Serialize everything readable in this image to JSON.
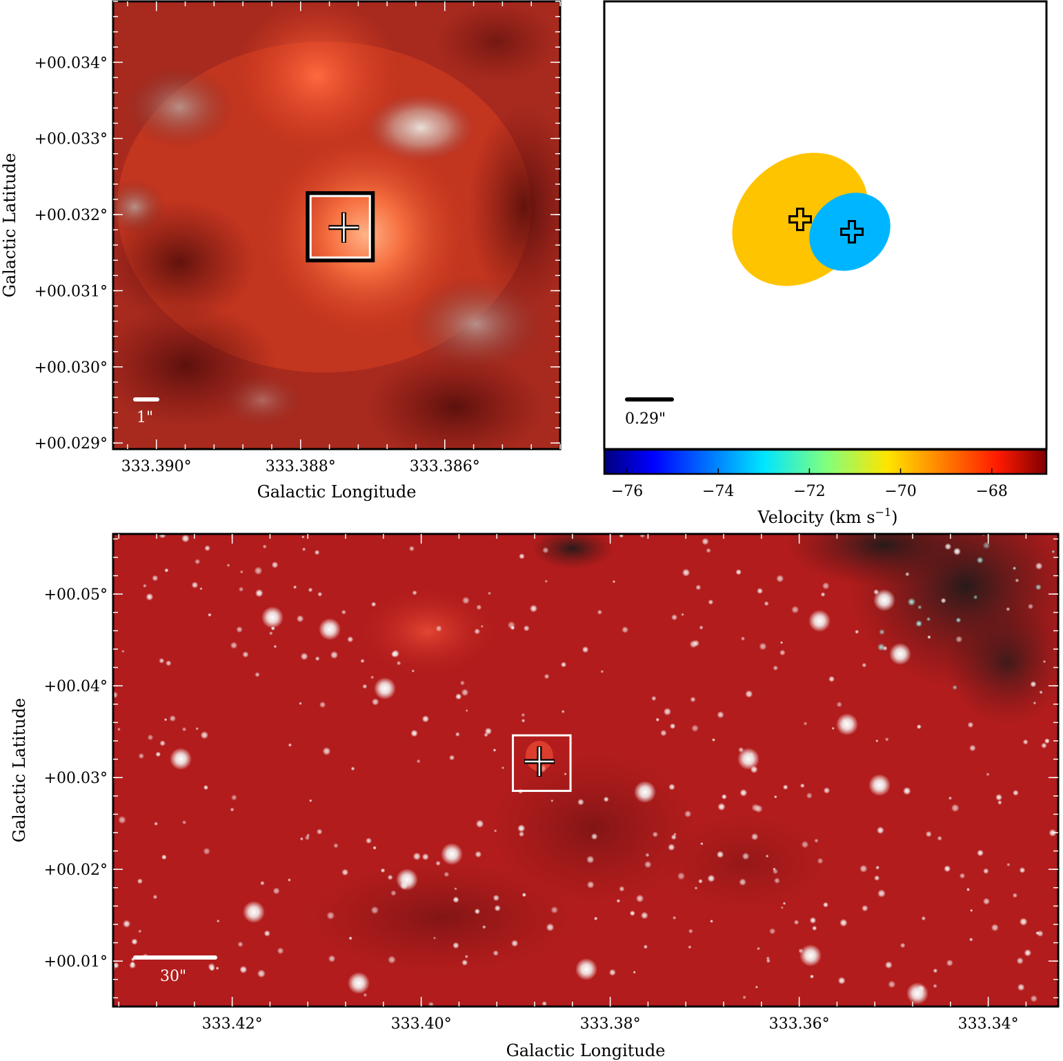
{
  "chart_data": [
    {
      "type": "image",
      "panel": "top-left",
      "xlabel": "Galactic Longitude",
      "ylabel": "Galactic Latitude",
      "xlim": [
        333.3906,
        333.3844
      ],
      "ylim": [
        0.02892,
        0.0348
      ],
      "x_ticks": [
        {
          "value": 333.39,
          "label": "333.390°"
        },
        {
          "value": 333.388,
          "label": "333.388°"
        },
        {
          "value": 333.386,
          "label": "333.386°"
        }
      ],
      "y_ticks": [
        {
          "value": 0.034,
          "label": "+00.034°"
        },
        {
          "value": 0.033,
          "label": "+00.033°"
        },
        {
          "value": 0.032,
          "label": "+00.032°"
        },
        {
          "value": 0.031,
          "label": "+00.031°"
        },
        {
          "value": 0.03,
          "label": "+00.030°"
        },
        {
          "value": 0.029,
          "label": "+00.029°"
        }
      ],
      "scale_bar": {
        "label": "1\"",
        "color": "#ffffff"
      },
      "markers": [
        {
          "l": 333.3874,
          "b": 0.03183,
          "shape": "cross"
        }
      ],
      "inset_box": {
        "l": [
          333.3879,
          333.387
        ],
        "b": [
          0.03228,
          0.0314
        ],
        "color": "#ffffff"
      }
    },
    {
      "type": "scatter",
      "panel": "top-right",
      "colorbar": {
        "label": "Velocity (km s",
        "label_sup": "−1",
        "label_end": ")",
        "range": [
          -76.5,
          -66.8
        ],
        "ticks": [
          {
            "value": -76,
            "label": "−76"
          },
          {
            "value": -74,
            "label": "−74"
          },
          {
            "value": -72,
            "label": "−72"
          },
          {
            "value": -70,
            "label": "−70"
          },
          {
            "value": -68,
            "label": "−68"
          }
        ]
      },
      "scale_bar": {
        "label": "0.29\"",
        "color": "#000000"
      },
      "components": [
        {
          "velocity": -69.8,
          "color": "#ffc400"
        },
        {
          "velocity": -73.1,
          "color": "#00b5ff"
        }
      ]
    },
    {
      "type": "image",
      "panel": "bottom",
      "xlabel": "Galactic Longitude",
      "ylabel": "Galactic Latitude",
      "xlim": [
        333.4326,
        333.3326
      ],
      "ylim": [
        0.00505,
        0.05655
      ],
      "x_ticks": [
        {
          "value": 333.42,
          "label": "333.42°"
        },
        {
          "value": 333.4,
          "label": "333.40°"
        },
        {
          "value": 333.38,
          "label": "333.38°"
        },
        {
          "value": 333.36,
          "label": "333.36°"
        },
        {
          "value": 333.34,
          "label": "333.34°"
        }
      ],
      "y_ticks": [
        {
          "value": 0.05,
          "label": "+00.05°"
        },
        {
          "value": 0.04,
          "label": "+00.04°"
        },
        {
          "value": 0.03,
          "label": "+00.03°"
        },
        {
          "value": 0.02,
          "label": "+00.02°"
        },
        {
          "value": 0.01,
          "label": "+00.01°"
        }
      ],
      "scale_bar": {
        "label": "30\"",
        "color": "#ffffff"
      },
      "markers": [
        {
          "l": 333.3875,
          "b": 0.03175,
          "shape": "cross"
        }
      ],
      "inset_box": {
        "l": [
          333.3903,
          333.3842
        ],
        "b": [
          0.0346,
          0.02855
        ],
        "color": "#ffffff"
      }
    }
  ]
}
